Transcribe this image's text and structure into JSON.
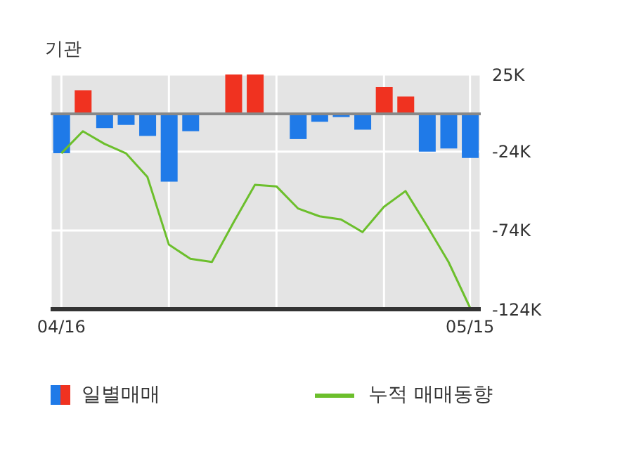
{
  "chart_data": {
    "type": "bar",
    "title": "기관",
    "categories": [
      "04/16",
      null,
      null,
      null,
      null,
      null,
      null,
      null,
      null,
      null,
      null,
      null,
      null,
      null,
      null,
      null,
      null,
      null,
      null,
      "05/15"
    ],
    "series": [
      {
        "name": "일별매매",
        "colors": [
          "#1f7ae8",
          "#f03220",
          "#1f7ae8",
          "#1f7ae8",
          "#1f7ae8",
          "#1f7ae8",
          "#1f7ae8",
          "#1f7ae8",
          "#f03220",
          "#f03220",
          "#1f7ae8",
          "#1f7ae8",
          "#1f7ae8",
          "#1f7ae8",
          "#1f7ae8",
          "#f03220",
          "#f03220",
          "#1f7ae8",
          "#1f7ae8",
          "#1f7ae8"
        ],
        "values": [
          -25000,
          15000,
          -9000,
          -7000,
          -14000,
          -43000,
          -11000,
          0,
          25000,
          25000,
          0,
          -16000,
          -5000,
          -2000,
          -10000,
          17000,
          11000,
          -24000,
          -22000,
          -28000
        ]
      },
      {
        "name": "누적 매매동향",
        "type": "line",
        "color": "#6cbf2c",
        "values": [
          -25000,
          -11000,
          -19000,
          -25000,
          -40000,
          -83000,
          -92000,
          -94000,
          -69000,
          -45000,
          -46000,
          -60000,
          -65000,
          -67000,
          -75000,
          -59000,
          -49000,
          -71000,
          -94000,
          -123000
        ]
      }
    ],
    "ylim": [
      -124000,
      25000
    ],
    "yticks": [
      {
        "value": 25000,
        "label": "25K"
      },
      {
        "value": -24000,
        "label": "-24K"
      },
      {
        "value": -74000,
        "label": "-74K"
      },
      {
        "value": -124000,
        "label": "-124K"
      }
    ],
    "ref_lines": [
      {
        "axis": "y",
        "value": 0,
        "color": "#888888"
      }
    ],
    "grid": true,
    "legend": "bottom"
  }
}
